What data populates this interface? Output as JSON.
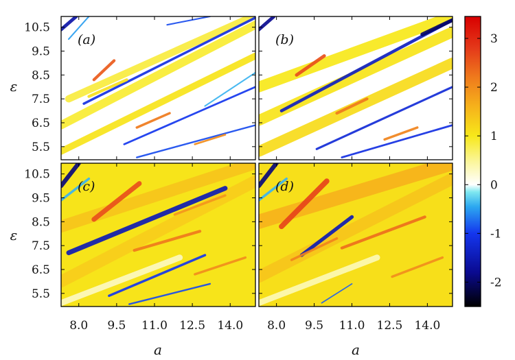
{
  "chart_data": {
    "type": "heatmap",
    "layout": "2x2 panels sharing axes",
    "xlabel": "a",
    "ylabel": "ε",
    "xlim": [
      7.3,
      15.0
    ],
    "ylim": [
      4.95,
      10.95
    ],
    "x_ticks": [
      8.0,
      9.5,
      11.0,
      12.5,
      14.0
    ],
    "x_tick_labels": [
      "8.0",
      "9.5",
      "11.0",
      "12.5",
      "14.0"
    ],
    "y_ticks": [
      5.5,
      6.5,
      7.5,
      8.5,
      9.5,
      10.5
    ],
    "y_tick_labels": [
      "5.5",
      "6.5",
      "7.5",
      "8.5",
      "9.5",
      "10.5"
    ],
    "colorbar": {
      "range": [
        -2.5,
        3.45
      ],
      "ticks": [
        -2,
        -1,
        0,
        1,
        2,
        3
      ],
      "tick_labels": [
        "-2",
        "-1",
        "0",
        "1",
        "2",
        "3"
      ],
      "colormap": [
        {
          "v": -2.5,
          "color": "#000000"
        },
        {
          "v": -1.8,
          "color": "#0a0a90"
        },
        {
          "v": -1.0,
          "color": "#1436ee"
        },
        {
          "v": -0.45,
          "color": "#2ca8f0"
        },
        {
          "v": -0.15,
          "color": "#7fe8f0"
        },
        {
          "v": 0.0,
          "color": "#ffffff"
        },
        {
          "v": 0.45,
          "color": "#fbf6a0"
        },
        {
          "v": 1.0,
          "color": "#f7e81a"
        },
        {
          "v": 1.6,
          "color": "#f6b21b"
        },
        {
          "v": 2.2,
          "color": "#ef7a1c"
        },
        {
          "v": 2.8,
          "color": "#e4391a"
        },
        {
          "v": 3.45,
          "color": "#d80000"
        }
      ]
    },
    "panels": [
      {
        "label": "(a)",
        "background_value": 0.0,
        "bands": [
          {
            "from": [
              7.3,
              5.3
            ],
            "to": [
              15.0,
              9.3
            ],
            "width": 0.28,
            "value": 1.05
          },
          {
            "from": [
              7.3,
              6.4
            ],
            "to": [
              15.0,
              10.6
            ],
            "width": 0.35,
            "value": 0.9
          },
          {
            "from": [
              7.6,
              7.5
            ],
            "to": [
              15.0,
              11.0
            ],
            "width": 0.3,
            "value": 0.85
          },
          {
            "from": [
              8.2,
              7.3
            ],
            "to": [
              15.0,
              10.9
            ],
            "width": 0.1,
            "value": -1.1
          },
          {
            "from": [
              9.8,
              5.6
            ],
            "to": [
              15.0,
              8.0
            ],
            "width": 0.08,
            "value": -1.0
          },
          {
            "from": [
              10.3,
              5.05
            ],
            "to": [
              15.0,
              6.4
            ],
            "width": 0.07,
            "value": -0.9
          },
          {
            "from": [
              8.6,
              8.3
            ],
            "to": [
              9.4,
              9.1
            ],
            "width": 0.12,
            "value": 2.5
          },
          {
            "from": [
              10.3,
              6.3
            ],
            "to": [
              11.6,
              6.9
            ],
            "width": 0.1,
            "value": 2.2
          },
          {
            "from": [
              12.6,
              5.6
            ],
            "to": [
              13.8,
              6.0
            ],
            "width": 0.08,
            "value": 2.0
          },
          {
            "from": [
              8.4,
              7.6
            ],
            "to": [
              9.9,
              8.3
            ],
            "width": 0.12,
            "value": 1.1
          },
          {
            "from": [
              7.3,
              10.4
            ],
            "to": [
              7.9,
              10.95
            ],
            "width": 0.14,
            "value": -1.6
          },
          {
            "from": [
              7.6,
              10.0
            ],
            "to": [
              8.4,
              10.95
            ],
            "width": 0.06,
            "value": -0.5
          },
          {
            "from": [
              13.0,
              7.2
            ],
            "to": [
              15.0,
              8.6
            ],
            "width": 0.06,
            "value": -0.4
          },
          {
            "from": [
              11.5,
              10.6
            ],
            "to": [
              13.2,
              10.95
            ],
            "width": 0.06,
            "value": -0.9
          }
        ]
      },
      {
        "label": "(b)",
        "background_value": 0.0,
        "bands": [
          {
            "from": [
              7.3,
              5.3
            ],
            "to": [
              15.0,
              9.0
            ],
            "width": 0.45,
            "value": 1.15
          },
          {
            "from": [
              7.3,
              6.6
            ],
            "to": [
              15.0,
              10.3
            ],
            "width": 0.45,
            "value": 1.05
          },
          {
            "from": [
              7.3,
              8.0
            ],
            "to": [
              15.0,
              10.95
            ],
            "width": 0.45,
            "value": 1.0
          },
          {
            "from": [
              8.2,
              7.0
            ],
            "to": [
              15.0,
              10.8
            ],
            "width": 0.13,
            "value": -1.4
          },
          {
            "from": [
              9.6,
              5.4
            ],
            "to": [
              15.0,
              8.0
            ],
            "width": 0.09,
            "value": -1.2
          },
          {
            "from": [
              10.6,
              5.05
            ],
            "to": [
              15.0,
              6.4
            ],
            "width": 0.08,
            "value": -1.1
          },
          {
            "from": [
              8.8,
              8.5
            ],
            "to": [
              9.9,
              9.3
            ],
            "width": 0.14,
            "value": 2.6
          },
          {
            "from": [
              10.4,
              6.9
            ],
            "to": [
              11.6,
              7.5
            ],
            "width": 0.12,
            "value": 2.2
          },
          {
            "from": [
              12.3,
              5.8
            ],
            "to": [
              13.6,
              6.3
            ],
            "width": 0.1,
            "value": 2.1
          },
          {
            "from": [
              7.3,
              10.4
            ],
            "to": [
              7.9,
              10.95
            ],
            "width": 0.14,
            "value": -1.8
          },
          {
            "from": [
              13.8,
              10.2
            ],
            "to": [
              15.0,
              10.8
            ],
            "width": 0.16,
            "value": -2.0
          }
        ]
      },
      {
        "label": "(c)",
        "background_value": 1.05,
        "bands": [
          {
            "from": [
              7.3,
              6.0
            ],
            "to": [
              15.0,
              10.2
            ],
            "width": 0.5,
            "value": 1.3
          },
          {
            "from": [
              7.3,
              8.3
            ],
            "to": [
              15.0,
              10.95
            ],
            "width": 0.5,
            "value": 1.4
          },
          {
            "from": [
              7.3,
              5.1
            ],
            "to": [
              12.0,
              7.0
            ],
            "width": 0.25,
            "value": 0.3
          },
          {
            "from": [
              7.6,
              7.2
            ],
            "to": [
              13.8,
              9.9
            ],
            "width": 0.2,
            "value": -1.5
          },
          {
            "from": [
              9.2,
              5.4
            ],
            "to": [
              13.0,
              7.1
            ],
            "width": 0.1,
            "value": -1.0
          },
          {
            "from": [
              10.0,
              5.05
            ],
            "to": [
              13.2,
              5.9
            ],
            "width": 0.07,
            "value": -0.9
          },
          {
            "from": [
              8.6,
              8.6
            ],
            "to": [
              10.4,
              10.1
            ],
            "width": 0.2,
            "value": 2.6
          },
          {
            "from": [
              10.2,
              7.3
            ],
            "to": [
              12.8,
              8.1
            ],
            "width": 0.12,
            "value": 2.2
          },
          {
            "from": [
              12.6,
              6.3
            ],
            "to": [
              14.6,
              7.0
            ],
            "width": 0.1,
            "value": 2.0
          },
          {
            "from": [
              11.8,
              8.8
            ],
            "to": [
              13.8,
              9.6
            ],
            "width": 0.1,
            "value": 1.9
          },
          {
            "from": [
              7.3,
              10.0
            ],
            "to": [
              8.0,
              10.95
            ],
            "width": 0.18,
            "value": -1.9
          },
          {
            "from": [
              7.3,
              9.4
            ],
            "to": [
              8.4,
              10.3
            ],
            "width": 0.1,
            "value": -0.4
          }
        ]
      },
      {
        "label": "(d)",
        "background_value": 1.1,
        "bands": [
          {
            "from": [
              7.3,
              6.2
            ],
            "to": [
              15.0,
              10.3
            ],
            "width": 0.5,
            "value": 1.4
          },
          {
            "from": [
              7.3,
              8.5
            ],
            "to": [
              15.0,
              10.95
            ],
            "width": 0.6,
            "value": 1.6
          },
          {
            "from": [
              7.3,
              5.1
            ],
            "to": [
              12.0,
              7.0
            ],
            "width": 0.25,
            "value": 0.35
          },
          {
            "from": [
              9.0,
              7.1
            ],
            "to": [
              11.0,
              8.7
            ],
            "width": 0.15,
            "value": -1.5
          },
          {
            "from": [
              9.8,
              5.1
            ],
            "to": [
              11.0,
              5.9
            ],
            "width": 0.05,
            "value": -0.8
          },
          {
            "from": [
              8.2,
              8.3
            ],
            "to": [
              10.0,
              10.2
            ],
            "width": 0.22,
            "value": 2.7
          },
          {
            "from": [
              10.6,
              7.4
            ],
            "to": [
              13.9,
              8.7
            ],
            "width": 0.12,
            "value": 2.3
          },
          {
            "from": [
              12.6,
              6.2
            ],
            "to": [
              14.6,
              7.0
            ],
            "width": 0.1,
            "value": 2.0
          },
          {
            "from": [
              8.6,
              6.9
            ],
            "to": [
              10.4,
              7.8
            ],
            "width": 0.1,
            "value": 2.1
          },
          {
            "from": [
              7.3,
              10.0
            ],
            "to": [
              8.0,
              10.95
            ],
            "width": 0.18,
            "value": -1.9
          },
          {
            "from": [
              7.3,
              9.4
            ],
            "to": [
              8.4,
              10.3
            ],
            "width": 0.1,
            "value": -0.4
          }
        ]
      }
    ]
  }
}
